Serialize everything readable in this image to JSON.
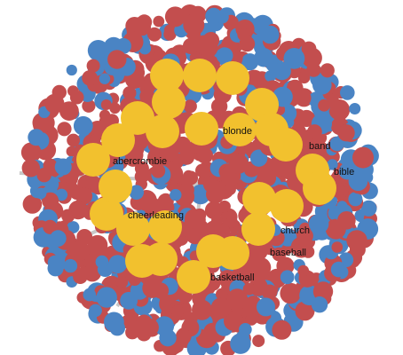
{
  "colors": {
    "red_node": "#c34e4e",
    "blue_node": "#4a84c4",
    "yellow_node": "#f2c12e",
    "edge": "#c8c8c8",
    "background": "#ffffff"
  },
  "labels": {
    "blonde": "blonde",
    "band": "band",
    "bible": "bible",
    "abercrombie": "abercrombie",
    "cheerleading": "cheerleading",
    "church": "church",
    "baseball": "baseball",
    "basketball": "basketball"
  }
}
